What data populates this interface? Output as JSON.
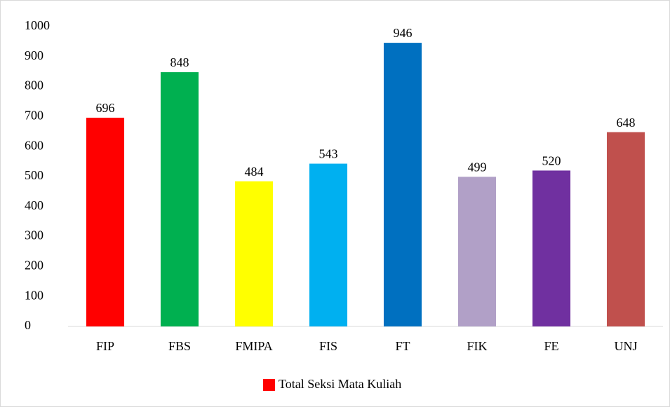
{
  "chart_data": {
    "type": "bar",
    "categories": [
      "FIP",
      "FBS",
      "FMIPA",
      "FIS",
      "FT",
      "FIK",
      "FE",
      "UNJ"
    ],
    "series": [
      {
        "name": "Total Seksi Mata Kuliah",
        "color": "#ff0000",
        "values": [
          696,
          848,
          484,
          543,
          946,
          499,
          520,
          648
        ]
      }
    ],
    "bar_colors": [
      "#ff0000",
      "#00b050",
      "#ffff00",
      "#00b0f0",
      "#0070c0",
      "#b1a0c7",
      "#7030a0",
      "#c0504d"
    ],
    "ylim": [
      0,
      1000
    ],
    "yticks": [
      0,
      100,
      200,
      300,
      400,
      500,
      600,
      700,
      800,
      900,
      1000
    ],
    "grid": false,
    "legend": "bottom"
  }
}
